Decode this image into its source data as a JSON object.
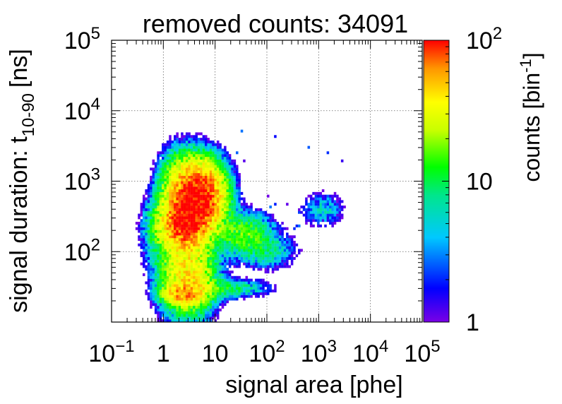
{
  "chart_data": {
    "type": "heatmap",
    "title": "removed counts: 34091",
    "xlabel": "signal area [phe]",
    "ylabel": "signal duration: t",
    "ylabel_subscript": "10-90",
    "ylabel_unit": "[ns]",
    "zlabel": "counts [bin",
    "zlabel_superscript": "-1",
    "zlabel_end": "]",
    "x_scale": "log",
    "y_scale": "log",
    "z_scale": "log",
    "xlim": [
      0.1,
      100000
    ],
    "ylim": [
      10,
      100000
    ],
    "zlim": [
      1,
      100
    ],
    "grid": true,
    "x_ticks": [
      {
        "value": 0.1,
        "base": "10",
        "exp": "−1"
      },
      {
        "value": 1,
        "base": "1",
        "exp": ""
      },
      {
        "value": 10,
        "base": "10",
        "exp": ""
      },
      {
        "value": 100,
        "base": "10",
        "exp": "2"
      },
      {
        "value": 1000,
        "base": "10",
        "exp": "3"
      },
      {
        "value": 10000,
        "base": "10",
        "exp": "4"
      },
      {
        "value": 100000,
        "base": "10",
        "exp": "5"
      }
    ],
    "y_ticks": [
      {
        "value": 100,
        "base": "10",
        "exp": "2"
      },
      {
        "value": 1000,
        "base": "10",
        "exp": "3"
      },
      {
        "value": 10000,
        "base": "10",
        "exp": "4"
      },
      {
        "value": 100000,
        "base": "10",
        "exp": "5"
      }
    ],
    "z_ticks": [
      {
        "value": 1,
        "base": "1",
        "exp": ""
      },
      {
        "value": 10,
        "base": "10",
        "exp": ""
      },
      {
        "value": 100,
        "base": "10",
        "exp": "2"
      }
    ],
    "colormap": [
      "#7a00e6",
      "#0000ff",
      "#00c8ff",
      "#00e68c",
      "#00ff00",
      "#c8ff00",
      "#ffff00",
      "#ff9600",
      "#ff0000"
    ],
    "clusters": [
      {
        "x": 5,
        "y": 600,
        "sx": 0.27,
        "sy": 0.28,
        "peak": 110
      },
      {
        "x": 2.5,
        "y": 250,
        "sx": 0.25,
        "sy": 0.22,
        "peak": 85
      },
      {
        "x": 3,
        "y": 45,
        "sx": 0.3,
        "sy": 0.32,
        "peak": 35
      },
      {
        "x": 2.5,
        "y": 25,
        "sx": 0.22,
        "sy": 0.08,
        "peak": 45
      },
      {
        "x": 2,
        "y": 800,
        "sx": 0.22,
        "sy": 0.3,
        "peak": 20
      },
      {
        "x": 35,
        "y": 180,
        "sx": 0.35,
        "sy": 0.18,
        "peak": 12
      },
      {
        "x": 15,
        "y": 30,
        "sx": 0.5,
        "sy": 0.08,
        "peak": 8
      },
      {
        "x": 100,
        "y": 100,
        "sx": 0.35,
        "sy": 0.15,
        "peak": 5
      },
      {
        "x": 1200,
        "y": 400,
        "sx": 0.25,
        "sy": 0.15,
        "peak": 4
      },
      {
        "x": 0.8,
        "y": 200,
        "sx": 0.2,
        "sy": 0.3,
        "peak": 6
      }
    ],
    "scatter_region": {
      "xlim": [
        2,
        3000
      ],
      "ylim": [
        200,
        6000
      ]
    }
  }
}
